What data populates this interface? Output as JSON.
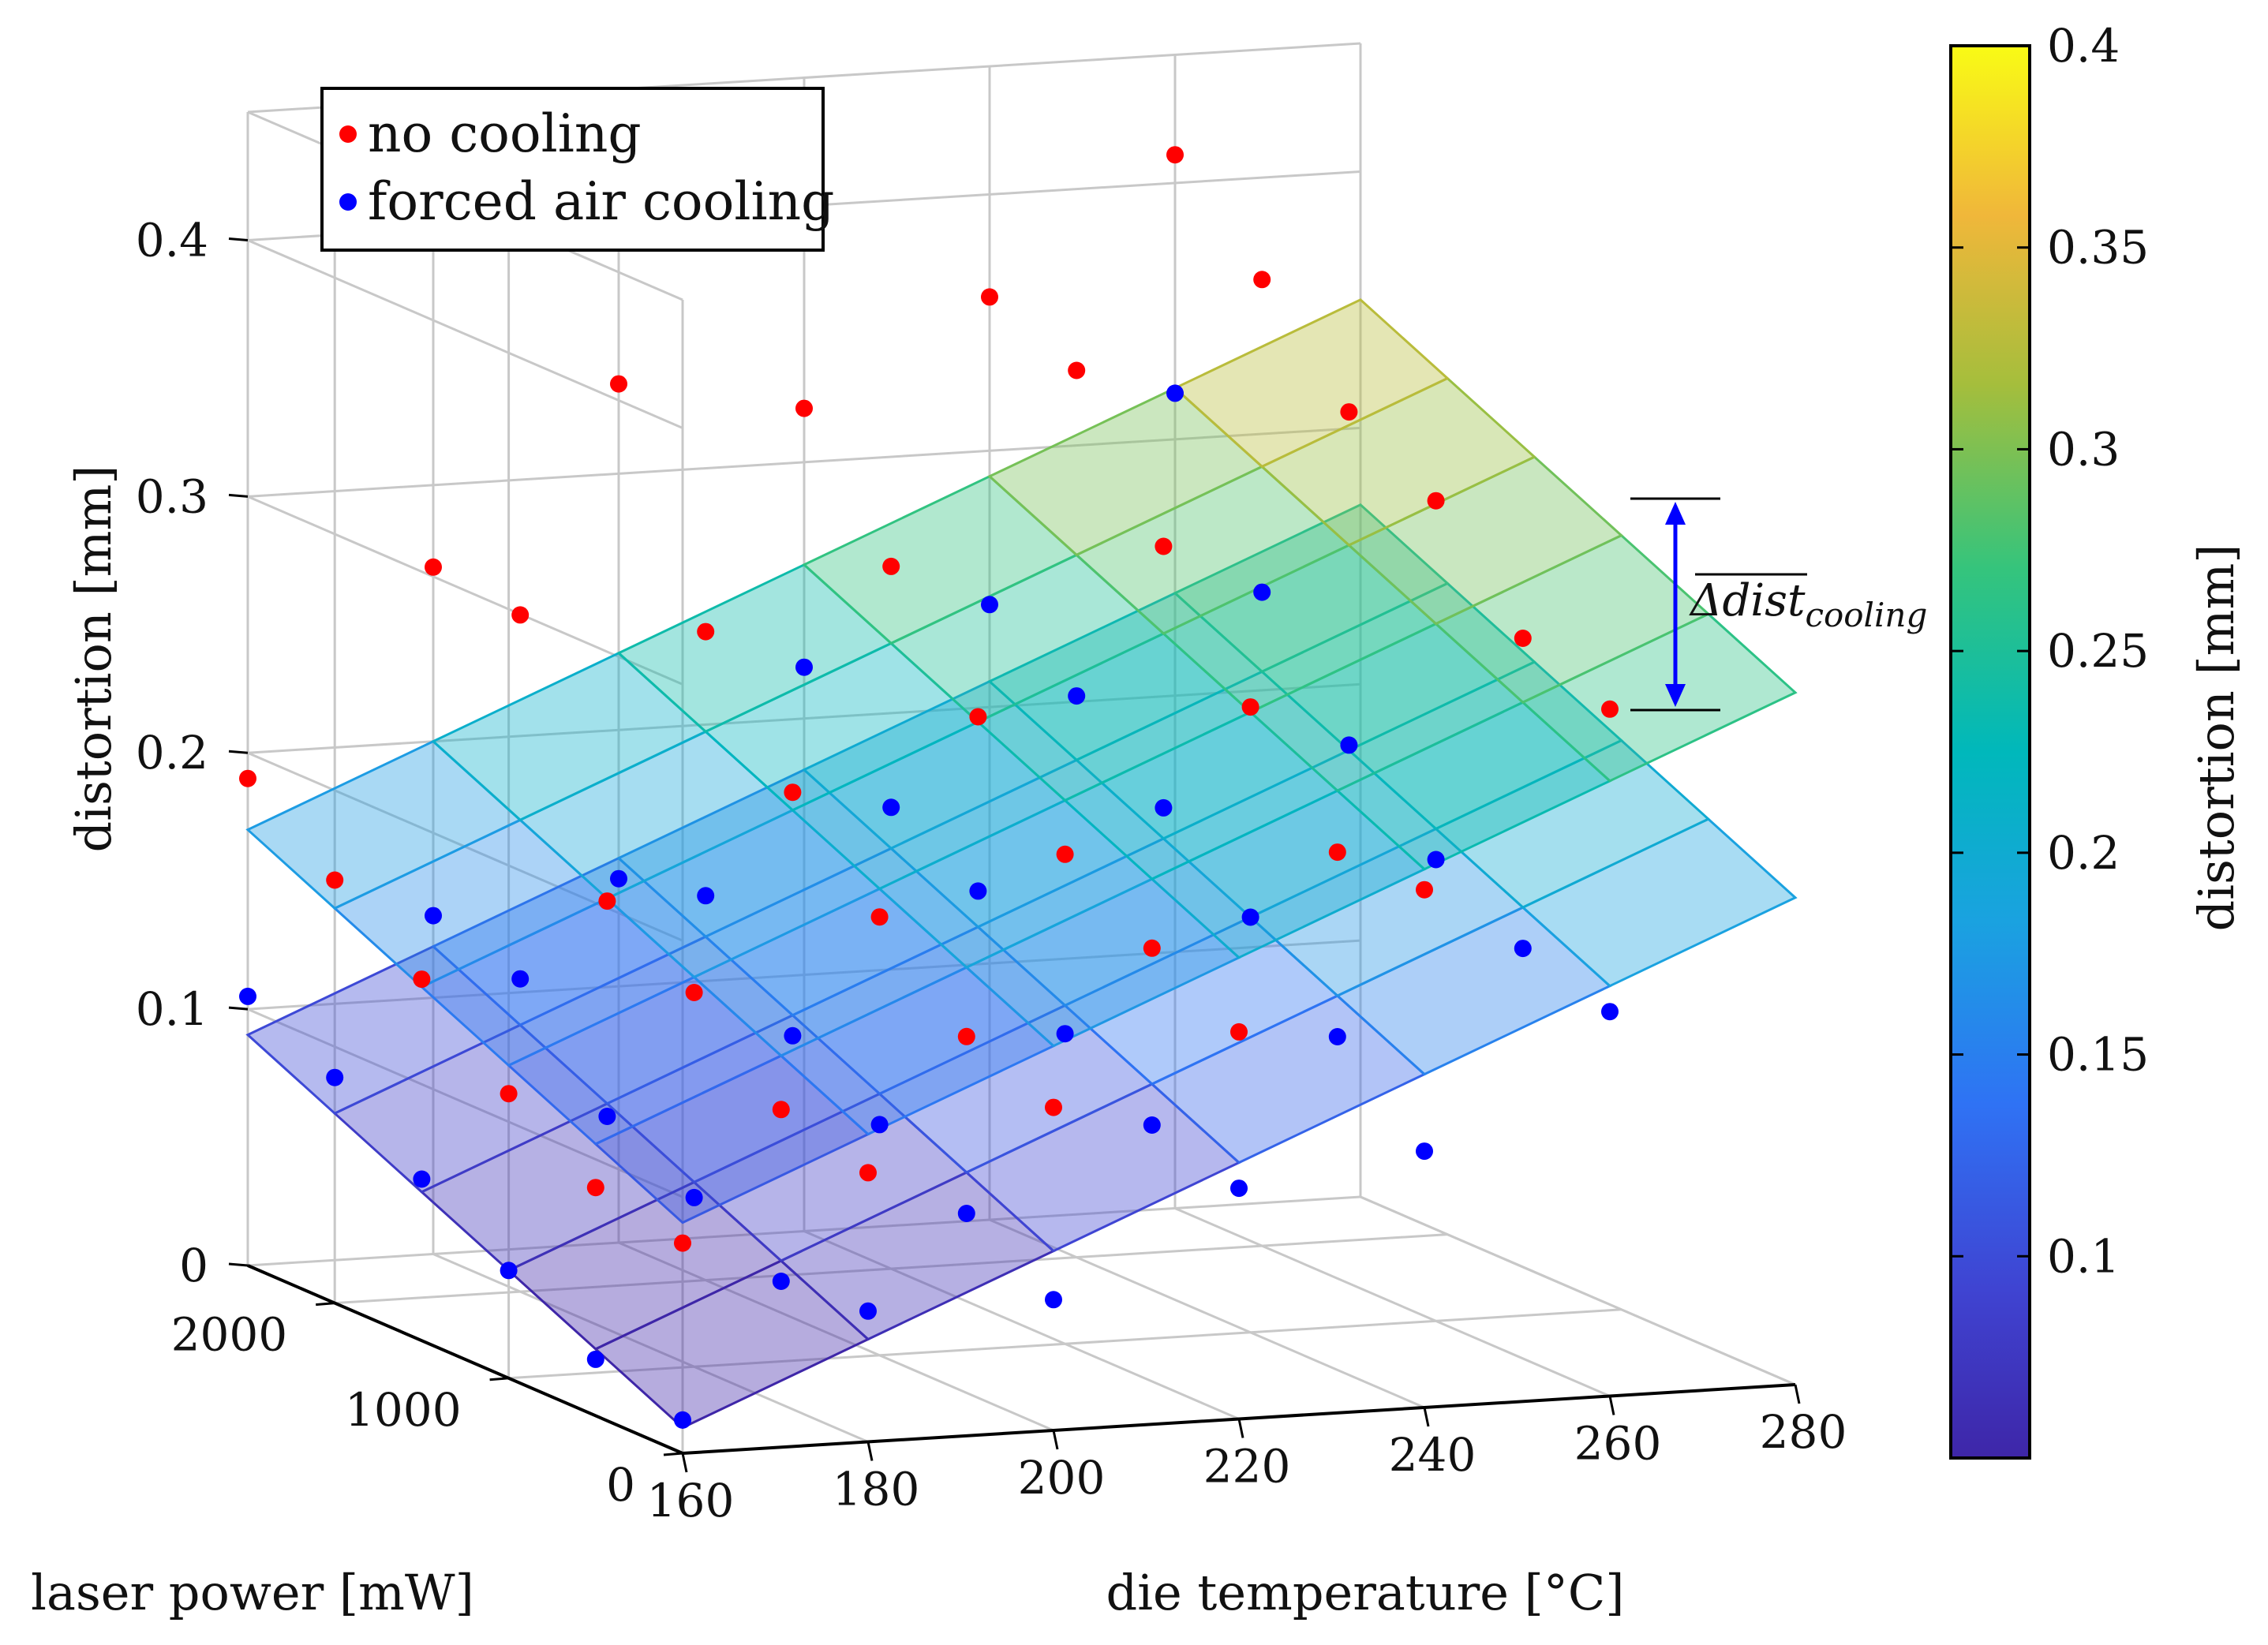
{
  "chart_data": {
    "type": "scatter",
    "subtype": "3d-scatter-with-fitted-surfaces",
    "xlabel": "die temperature [°C]",
    "ylabel": "laser power [mW]",
    "zlabel": "distortion [mm]",
    "colorbar_label": "distortion [mm]",
    "x_ticks": [
      "160",
      "180",
      "200",
      "220",
      "240",
      "260",
      "280"
    ],
    "y_ticks": [
      "0",
      "1000",
      "2000"
    ],
    "z_ticks": [
      "0",
      "0.1",
      "0.2",
      "0.3",
      "0.4"
    ],
    "colorbar_ticks": [
      "0.1",
      "0.15",
      "0.2",
      "0.25",
      "0.3",
      "0.35",
      "0.4"
    ],
    "xlim": [
      160,
      280
    ],
    "ylim": [
      0,
      2500
    ],
    "zlim": [
      0,
      0.45
    ],
    "colorbar_range": [
      0.05,
      0.4
    ],
    "grid": true,
    "legend_position": "top-left",
    "annotation": "Δdist",
    "annotation_subscript": "cooling",
    "series": [
      {
        "name": "no cooling",
        "color": "#ff0000",
        "surface": {
          "z_x0_y0": 0.09,
          "z_x1_y0": 0.27,
          "z_x0_y1": 0.17,
          "z_x1_y1": 0.35
        },
        "points": [
          {
            "x": 160,
            "y": 0,
            "z": 0.082
          },
          {
            "x": 160,
            "y": 500,
            "z": 0.089
          },
          {
            "x": 160,
            "y": 1000,
            "z": 0.111
          },
          {
            "x": 160,
            "y": 1500,
            "z": 0.141
          },
          {
            "x": 160,
            "y": 2000,
            "z": 0.165
          },
          {
            "x": 160,
            "y": 2500,
            "z": 0.19
          },
          {
            "x": 180,
            "y": 0,
            "z": 0.105
          },
          {
            "x": 180,
            "y": 500,
            "z": 0.115
          },
          {
            "x": 180,
            "y": 1000,
            "z": 0.146
          },
          {
            "x": 180,
            "y": 1500,
            "z": 0.167
          },
          {
            "x": 180,
            "y": 2000,
            "z": 0.264
          },
          {
            "x": 180,
            "y": 2500,
            "z": 0.268
          },
          {
            "x": 200,
            "y": 0,
            "z": 0.126
          },
          {
            "x": 200,
            "y": 500,
            "z": 0.139
          },
          {
            "x": 200,
            "y": 1000,
            "z": 0.171
          },
          {
            "x": 200,
            "y": 1500,
            "z": 0.205
          },
          {
            "x": 200,
            "y": 2000,
            "z": 0.253
          },
          {
            "x": 200,
            "y": 2500,
            "z": 0.335
          },
          {
            "x": 220,
            "y": 0,
            "z": 0.151
          },
          {
            "x": 220,
            "y": 500,
            "z": 0.169
          },
          {
            "x": 220,
            "y": 1000,
            "z": 0.191
          },
          {
            "x": 220,
            "y": 1500,
            "z": 0.23
          },
          {
            "x": 220,
            "y": 2000,
            "z": 0.274
          },
          {
            "x": 220,
            "y": 2500,
            "z": 0.321
          },
          {
            "x": 240,
            "y": 0,
            "z": 0.202
          },
          {
            "x": 240,
            "y": 500,
            "z": 0.202
          },
          {
            "x": 240,
            "y": 1000,
            "z": 0.244
          },
          {
            "x": 240,
            "y": 1500,
            "z": 0.292
          },
          {
            "x": 240,
            "y": 2000,
            "z": 0.346
          },
          {
            "x": 240,
            "y": 2500,
            "z": 0.36
          },
          {
            "x": 260,
            "y": 0,
            "z": 0.268
          },
          {
            "x": 260,
            "y": 500,
            "z": 0.281
          },
          {
            "x": 260,
            "y": 1000,
            "z": 0.32
          },
          {
            "x": 260,
            "y": 1500,
            "z": 0.34
          },
          {
            "x": 260,
            "y": 2000,
            "z": 0.377
          },
          {
            "x": 260,
            "y": 2500,
            "z": 0.411
          }
        ]
      },
      {
        "name": "forced air cooling",
        "color": "#0000ff",
        "surface": {
          "z_x0_y0": 0.01,
          "z_x1_y0": 0.19,
          "z_x0_y1": 0.09,
          "z_x1_y1": 0.27
        },
        "points": [
          {
            "x": 160,
            "y": 0,
            "z": 0.013
          },
          {
            "x": 160,
            "y": 500,
            "z": 0.022
          },
          {
            "x": 160,
            "y": 1000,
            "z": 0.042
          },
          {
            "x": 160,
            "y": 1500,
            "z": 0.063
          },
          {
            "x": 160,
            "y": 2000,
            "z": 0.088
          },
          {
            "x": 160,
            "y": 2500,
            "z": 0.105
          },
          {
            "x": 180,
            "y": 0,
            "z": 0.051
          },
          {
            "x": 180,
            "y": 500,
            "z": 0.048
          },
          {
            "x": 180,
            "y": 1000,
            "z": 0.066
          },
          {
            "x": 180,
            "y": 1500,
            "z": 0.083
          },
          {
            "x": 180,
            "y": 2000,
            "z": 0.122
          },
          {
            "x": 180,
            "y": 2500,
            "z": 0.132
          },
          {
            "x": 200,
            "y": 0,
            "z": 0.051
          },
          {
            "x": 200,
            "y": 500,
            "z": 0.07
          },
          {
            "x": 200,
            "y": 1000,
            "z": 0.09
          },
          {
            "x": 200,
            "y": 1500,
            "z": 0.11
          },
          {
            "x": 200,
            "y": 2000,
            "z": 0.15
          },
          {
            "x": 200,
            "y": 2500,
            "z": 0.142
          },
          {
            "x": 220,
            "y": 0,
            "z": 0.09
          },
          {
            "x": 220,
            "y": 500,
            "z": 0.1
          },
          {
            "x": 220,
            "y": 1000,
            "z": 0.121
          },
          {
            "x": 220,
            "y": 1500,
            "z": 0.162
          },
          {
            "x": 220,
            "y": 2000,
            "z": 0.18
          },
          {
            "x": 220,
            "y": 2500,
            "z": 0.22
          },
          {
            "x": 240,
            "y": 0,
            "z": 0.1
          },
          {
            "x": 240,
            "y": 500,
            "z": 0.13
          },
          {
            "x": 240,
            "y": 1000,
            "z": 0.162
          },
          {
            "x": 240,
            "y": 1500,
            "z": 0.19
          },
          {
            "x": 240,
            "y": 2000,
            "z": 0.219
          },
          {
            "x": 240,
            "y": 2500,
            "z": 0.24
          },
          {
            "x": 260,
            "y": 0,
            "z": 0.15
          },
          {
            "x": 260,
            "y": 500,
            "z": 0.16
          },
          {
            "x": 260,
            "y": 1000,
            "z": 0.18
          },
          {
            "x": 260,
            "y": 1500,
            "z": 0.21
          },
          {
            "x": 260,
            "y": 2000,
            "z": 0.255
          },
          {
            "x": 260,
            "y": 2500,
            "z": 0.318
          }
        ]
      }
    ]
  }
}
